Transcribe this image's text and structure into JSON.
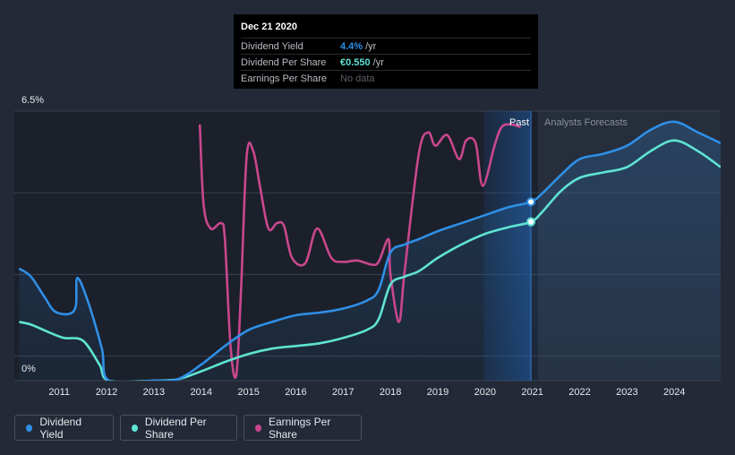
{
  "tooltip": {
    "date": "Dec 21 2020",
    "rows": [
      {
        "label": "Dividend Yield",
        "value": "4.4%",
        "unit": "/yr",
        "color": "#2f8fe6"
      },
      {
        "label": "Dividend Per Share",
        "value": "€0.550",
        "unit": "/yr",
        "color": "#5fe3d3"
      },
      {
        "label": "Earnings Per Share",
        "value": "No data",
        "unit": "",
        "color": "#5a5f68"
      }
    ]
  },
  "chart_data": {
    "type": "line",
    "x_ticks": [
      "2011",
      "2012",
      "2013",
      "2014",
      "2015",
      "2016",
      "2017",
      "2018",
      "2019",
      "2020",
      "2021",
      "2022",
      "2023",
      "2024"
    ],
    "ylim_labels": {
      "top": "6.5%",
      "bottom": "0%"
    },
    "region_labels": {
      "past": "Past",
      "forecast": "Analysts Forecasts"
    },
    "cursor_x": 2020.97,
    "series": [
      {
        "name": "Dividend Yield",
        "color": "#2f8fe6",
        "points": [
          [
            2010.15,
            4.2
          ],
          [
            2010.4,
            3.9
          ],
          [
            2010.7,
            3.1
          ],
          [
            2010.9,
            2.6
          ],
          [
            2011.2,
            2.5
          ],
          [
            2011.35,
            2.8
          ],
          [
            2011.38,
            3.85
          ],
          [
            2011.6,
            3.0
          ],
          [
            2011.9,
            1.2
          ],
          [
            2012.05,
            0.0
          ],
          [
            2013.0,
            0.0
          ],
          [
            2013.5,
            0.05
          ],
          [
            2014.0,
            0.6
          ],
          [
            2014.5,
            1.3
          ],
          [
            2015.0,
            1.9
          ],
          [
            2015.5,
            2.2
          ],
          [
            2016.0,
            2.45
          ],
          [
            2016.5,
            2.55
          ],
          [
            2017.0,
            2.7
          ],
          [
            2017.5,
            3.0
          ],
          [
            2017.75,
            3.4
          ],
          [
            2018.0,
            4.8
          ],
          [
            2018.3,
            5.1
          ],
          [
            2018.6,
            5.3
          ],
          [
            2019.0,
            5.6
          ],
          [
            2019.5,
            5.9
          ],
          [
            2020.0,
            6.2
          ],
          [
            2020.5,
            6.5
          ],
          [
            2020.97,
            6.7
          ],
          [
            2021.2,
            7.0
          ],
          [
            2021.6,
            7.7
          ],
          [
            2022.0,
            8.3
          ],
          [
            2022.5,
            8.5
          ],
          [
            2023.0,
            8.8
          ],
          [
            2023.5,
            9.4
          ],
          [
            2024.0,
            9.7
          ],
          [
            2024.5,
            9.3
          ],
          [
            2024.98,
            8.9
          ]
        ]
      },
      {
        "name": "Dividend Per Share",
        "color": "#5fe3d3",
        "points": [
          [
            2010.15,
            2.2
          ],
          [
            2010.4,
            2.1
          ],
          [
            2010.8,
            1.8
          ],
          [
            2011.1,
            1.6
          ],
          [
            2011.5,
            1.5
          ],
          [
            2011.85,
            0.6
          ],
          [
            2012.05,
            0.0
          ],
          [
            2013.0,
            0.0
          ],
          [
            2013.5,
            0.05
          ],
          [
            2014.0,
            0.35
          ],
          [
            2014.5,
            0.7
          ],
          [
            2015.0,
            1.0
          ],
          [
            2015.5,
            1.2
          ],
          [
            2016.0,
            1.3
          ],
          [
            2016.5,
            1.4
          ],
          [
            2017.0,
            1.6
          ],
          [
            2017.5,
            1.9
          ],
          [
            2017.75,
            2.3
          ],
          [
            2018.0,
            3.6
          ],
          [
            2018.3,
            3.9
          ],
          [
            2018.6,
            4.1
          ],
          [
            2019.0,
            4.6
          ],
          [
            2019.5,
            5.1
          ],
          [
            2020.0,
            5.5
          ],
          [
            2020.5,
            5.75
          ],
          [
            2020.97,
            5.95
          ],
          [
            2021.2,
            6.3
          ],
          [
            2021.6,
            7.1
          ],
          [
            2022.0,
            7.6
          ],
          [
            2022.5,
            7.8
          ],
          [
            2023.0,
            8.0
          ],
          [
            2023.5,
            8.6
          ],
          [
            2024.0,
            9.0
          ],
          [
            2024.5,
            8.6
          ],
          [
            2024.98,
            8.0
          ]
        ]
      },
      {
        "name": "Earnings Per Share",
        "color": "#c9478d",
        "points": [
          [
            2013.97,
            9.6
          ],
          [
            2014.05,
            6.6
          ],
          [
            2014.2,
            5.7
          ],
          [
            2014.42,
            5.9
          ],
          [
            2014.5,
            5.3
          ],
          [
            2014.62,
            1.3
          ],
          [
            2014.74,
            0.2
          ],
          [
            2014.84,
            3.3
          ],
          [
            2014.96,
            8.4
          ],
          [
            2015.1,
            8.6
          ],
          [
            2015.25,
            7.2
          ],
          [
            2015.42,
            5.7
          ],
          [
            2015.6,
            5.9
          ],
          [
            2015.75,
            5.8
          ],
          [
            2015.92,
            4.6
          ],
          [
            2016.2,
            4.4
          ],
          [
            2016.45,
            5.7
          ],
          [
            2016.75,
            4.6
          ],
          [
            2017.0,
            4.45
          ],
          [
            2017.3,
            4.5
          ],
          [
            2017.6,
            4.35
          ],
          [
            2017.75,
            4.45
          ],
          [
            2017.96,
            5.3
          ],
          [
            2018.0,
            4.0
          ],
          [
            2018.18,
            2.2
          ],
          [
            2018.3,
            4.1
          ],
          [
            2018.6,
            8.5
          ],
          [
            2018.8,
            9.3
          ],
          [
            2018.95,
            8.8
          ],
          [
            2019.2,
            9.2
          ],
          [
            2019.45,
            8.3
          ],
          [
            2019.6,
            9.0
          ],
          [
            2019.8,
            8.9
          ],
          [
            2019.95,
            7.3
          ],
          [
            2020.2,
            8.8
          ],
          [
            2020.35,
            9.5
          ],
          [
            2020.55,
            9.6
          ],
          [
            2020.75,
            9.5
          ]
        ]
      }
    ]
  },
  "legend": [
    {
      "label": "Dividend Yield",
      "color": "#2f8fe6"
    },
    {
      "label": "Dividend Per Share",
      "color": "#5fe3d3"
    },
    {
      "label": "Earnings Per Share",
      "color": "#c9478d"
    }
  ]
}
